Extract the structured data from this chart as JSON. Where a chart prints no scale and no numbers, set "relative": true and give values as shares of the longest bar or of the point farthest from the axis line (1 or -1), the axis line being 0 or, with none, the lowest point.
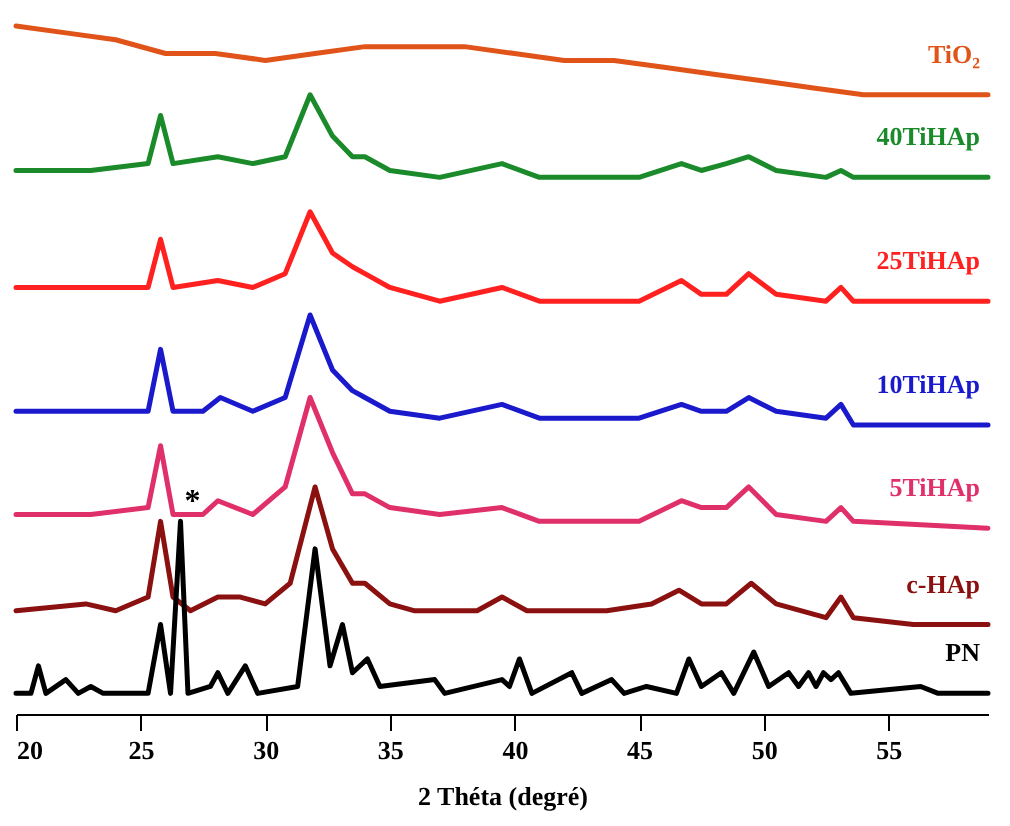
{
  "chart_data": {
    "type": "line",
    "relative": true,
    "xlabel": "2 Théta (degré)",
    "xlim": [
      20,
      59
    ],
    "xticks": [
      20,
      25,
      30,
      35,
      40,
      45,
      50,
      55
    ],
    "grid": false,
    "marker": "none",
    "line_style": "solid",
    "annotations": [
      {
        "text": "*",
        "x": 26.6,
        "y": 0.28
      }
    ],
    "series": [
      {
        "name": "TiO₂",
        "color": "#e0541a",
        "x": [
          20,
          22,
          24,
          26,
          28,
          30,
          32,
          34,
          36,
          38,
          40,
          42,
          44,
          46,
          48,
          50,
          52,
          54,
          56,
          58,
          59
        ],
        "values": [
          1.0,
          0.99,
          0.98,
          0.96,
          0.96,
          0.95,
          0.96,
          0.97,
          0.97,
          0.97,
          0.96,
          0.95,
          0.95,
          0.94,
          0.93,
          0.92,
          0.91,
          0.9,
          0.9,
          0.9,
          0.9
        ]
      },
      {
        "name": "40TiHAp",
        "color": "#1a8a2a",
        "x": [
          20,
          23,
          25.3,
          25.8,
          26.3,
          28.1,
          29.5,
          30.8,
          31.8,
          32.7,
          33.5,
          34,
          35,
          37,
          39.5,
          41,
          45,
          46.7,
          47.5,
          48.5,
          49.4,
          50.5,
          52.5,
          53.1,
          53.6,
          59
        ],
        "values": [
          0.79,
          0.79,
          0.8,
          0.87,
          0.8,
          0.81,
          0.8,
          0.81,
          0.9,
          0.84,
          0.81,
          0.81,
          0.79,
          0.78,
          0.8,
          0.78,
          0.78,
          0.8,
          0.79,
          0.8,
          0.81,
          0.79,
          0.78,
          0.79,
          0.78,
          0.78
        ]
      },
      {
        "name": "25TiHAp",
        "color": "#ff2020",
        "x": [
          20,
          25.3,
          25.8,
          26.3,
          28.1,
          29.5,
          30.8,
          31.8,
          32.7,
          33.5,
          34,
          35,
          37,
          39.5,
          41,
          45,
          46.7,
          47.5,
          48.5,
          49.4,
          50.5,
          52.5,
          53.1,
          53.6,
          59
        ],
        "values": [
          0.62,
          0.62,
          0.69,
          0.62,
          0.63,
          0.62,
          0.64,
          0.73,
          0.67,
          0.65,
          0.64,
          0.62,
          0.6,
          0.62,
          0.6,
          0.6,
          0.63,
          0.61,
          0.61,
          0.64,
          0.61,
          0.6,
          0.62,
          0.6,
          0.6
        ]
      },
      {
        "name": "10TiHAp",
        "color": "#1a1acc",
        "x": [
          20,
          23,
          25.3,
          25.8,
          26.3,
          27.5,
          28.2,
          29.5,
          30.8,
          31.8,
          32.7,
          33.5,
          34,
          35,
          37,
          39.5,
          41,
          45,
          46.7,
          47.5,
          48.5,
          49.4,
          50.5,
          52.5,
          53.1,
          53.6,
          59
        ],
        "values": [
          0.44,
          0.44,
          0.44,
          0.53,
          0.44,
          0.44,
          0.46,
          0.44,
          0.46,
          0.58,
          0.5,
          0.47,
          0.46,
          0.44,
          0.43,
          0.45,
          0.43,
          0.43,
          0.45,
          0.44,
          0.44,
          0.46,
          0.44,
          0.43,
          0.45,
          0.42,
          0.42
        ]
      },
      {
        "name": "5TiHAp",
        "color": "#e0306a",
        "x": [
          20,
          23,
          25.3,
          25.8,
          26.3,
          27.5,
          28.1,
          29.5,
          30.8,
          31.8,
          32.7,
          33.5,
          34,
          35,
          37,
          39.5,
          41,
          45,
          46.7,
          47.5,
          48.5,
          49.4,
          50.5,
          52.5,
          53.1,
          53.6,
          59
        ],
        "values": [
          0.29,
          0.29,
          0.3,
          0.39,
          0.29,
          0.29,
          0.31,
          0.29,
          0.33,
          0.46,
          0.38,
          0.32,
          0.32,
          0.3,
          0.29,
          0.3,
          0.28,
          0.28,
          0.31,
          0.3,
          0.3,
          0.33,
          0.29,
          0.28,
          0.3,
          0.28,
          0.27
        ]
      },
      {
        "name": "c-HAp",
        "color": "#8b1010",
        "x": [
          20,
          22.8,
          24,
          25.3,
          25.8,
          26.3,
          27,
          28.1,
          29,
          30,
          31,
          32,
          32.7,
          33.5,
          34,
          35,
          36,
          38.5,
          39.5,
          40.5,
          43.7,
          45.5,
          46.6,
          47.5,
          48.5,
          49.5,
          50.5,
          52.5,
          53.1,
          53.6,
          56,
          59
        ],
        "values": [
          0.15,
          0.16,
          0.15,
          0.17,
          0.28,
          0.17,
          0.15,
          0.17,
          0.17,
          0.16,
          0.19,
          0.33,
          0.24,
          0.19,
          0.19,
          0.16,
          0.15,
          0.15,
          0.17,
          0.15,
          0.15,
          0.16,
          0.18,
          0.16,
          0.16,
          0.19,
          0.16,
          0.14,
          0.17,
          0.14,
          0.13,
          0.13
        ]
      },
      {
        "name": "PN",
        "color": "#000000",
        "x": [
          20,
          20.6,
          20.9,
          21.2,
          22,
          22.5,
          23,
          23.5,
          25.3,
          25.8,
          26.2,
          26.6,
          26.9,
          27.8,
          28.1,
          28.5,
          29.2,
          29.7,
          31.3,
          32,
          32.6,
          33.1,
          33.5,
          34.1,
          34.6,
          36.8,
          37.2,
          39.5,
          39.8,
          40.2,
          40.7,
          42.3,
          42.7,
          43.9,
          44.4,
          45.3,
          46.5,
          47,
          47.5,
          48.3,
          48.8,
          49.6,
          50.2,
          51,
          51.4,
          51.8,
          52.1,
          52.4,
          52.7,
          53,
          53.5,
          56.3,
          57,
          59
        ],
        "values": [
          0.03,
          0.03,
          0.07,
          0.03,
          0.05,
          0.03,
          0.04,
          0.03,
          0.03,
          0.13,
          0.03,
          0.28,
          0.03,
          0.04,
          0.06,
          0.03,
          0.07,
          0.03,
          0.04,
          0.24,
          0.07,
          0.13,
          0.06,
          0.08,
          0.04,
          0.05,
          0.03,
          0.05,
          0.04,
          0.08,
          0.03,
          0.06,
          0.03,
          0.05,
          0.03,
          0.04,
          0.03,
          0.08,
          0.04,
          0.06,
          0.03,
          0.09,
          0.04,
          0.06,
          0.04,
          0.06,
          0.04,
          0.06,
          0.05,
          0.06,
          0.03,
          0.04,
          0.03,
          0.03
        ]
      }
    ]
  }
}
